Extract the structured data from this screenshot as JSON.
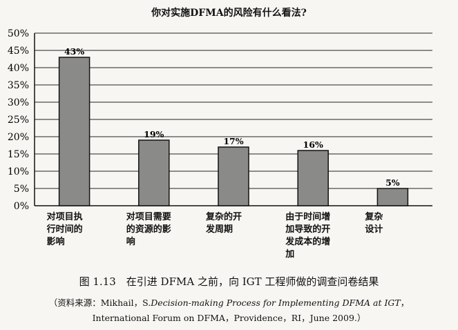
{
  "chart_data": {
    "type": "bar",
    "title": "你对实施DFMA的风险有什么看法?",
    "categories": [
      [
        "对项目执",
        "行时间的",
        "影响"
      ],
      [
        "对项目需要",
        "的资源的影",
        "响"
      ],
      [
        "复杂的开",
        "发周期"
      ],
      [
        "由于时间增",
        "加导致的开",
        "发成本的增",
        "加"
      ],
      [
        "复杂",
        "设计"
      ]
    ],
    "values": [
      43,
      19,
      17,
      16,
      5
    ],
    "data_labels": [
      "43%",
      "19%",
      "17%",
      "16%",
      "5%"
    ],
    "ylim": [
      0,
      50
    ],
    "yticks": [
      "0%",
      "5%",
      "10%",
      "15%",
      "20%",
      "25%",
      "30%",
      "35%",
      "40%",
      "45%",
      "50%"
    ],
    "grid": true,
    "legend": "none",
    "bar_color": "#8a8a88",
    "xlabel": "",
    "ylabel": ""
  },
  "caption": "图 1.13　在引进 DFMA 之前，向 IGT 工程师做的调查问卷结果",
  "source": {
    "prefix": "（资料来源：Mikhail，S.",
    "italic": "Decision-making Process for Implementing DFMA at IGT",
    "suffix": "，",
    "line2": "International Forum on DFMA，Providence，RI，June 2009.）"
  }
}
